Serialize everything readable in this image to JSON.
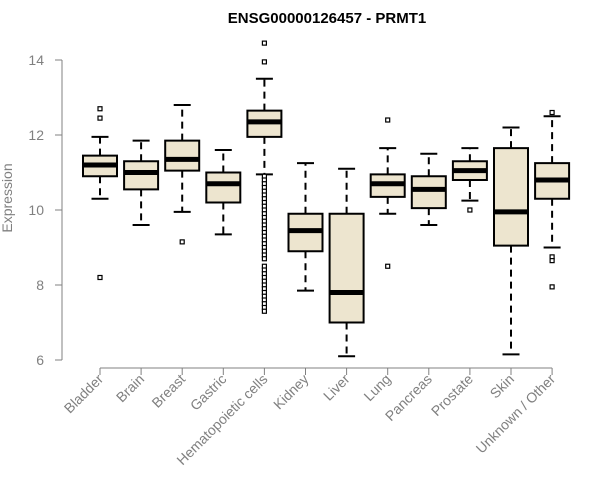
{
  "chart_data": {
    "type": "boxplot",
    "title": "ENSG00000126457 - PRMT1",
    "xlabel": "",
    "ylabel": "Expression",
    "ylim": [
      6,
      14.5
    ],
    "yticks": [
      6,
      8,
      10,
      12,
      14
    ],
    "colors": {
      "box_fill": "#ede5cf",
      "axis": "#808080",
      "median": "#000000"
    },
    "categories": [
      "Bladder",
      "Brain",
      "Breast",
      "Gastric",
      "Hematopoietic cells",
      "Kidney",
      "Liver",
      "Lung",
      "Pancreas",
      "Prostate",
      "Skin",
      "Unknown / Other"
    ],
    "boxes": [
      {
        "name": "Bladder",
        "min": 10.3,
        "q1": 10.9,
        "median": 11.2,
        "q3": 11.45,
        "max": 11.95,
        "outliers": [
          12.7,
          12.45,
          8.2
        ]
      },
      {
        "name": "Brain",
        "min": 9.6,
        "q1": 10.55,
        "median": 11.0,
        "q3": 11.3,
        "max": 11.85,
        "outliers": []
      },
      {
        "name": "Breast",
        "min": 9.95,
        "q1": 11.05,
        "median": 11.35,
        "q3": 11.85,
        "max": 12.8,
        "outliers": [
          9.15
        ]
      },
      {
        "name": "Gastric",
        "min": 9.35,
        "q1": 10.2,
        "median": 10.7,
        "q3": 11.0,
        "max": 11.6,
        "outliers": []
      },
      {
        "name": "Hematopoietic cells",
        "min": 10.95,
        "q1": 11.95,
        "median": 12.35,
        "q3": 12.65,
        "max": 13.5,
        "outliers": [
          14.45,
          13.95,
          10.9,
          10.8,
          10.7,
          10.6,
          10.5,
          10.4,
          10.3,
          10.2,
          10.1,
          10.0,
          9.9,
          9.8,
          9.7,
          9.6,
          9.5,
          9.4,
          9.3,
          9.2,
          9.1,
          9.0,
          8.9,
          8.8,
          8.7,
          8.5,
          8.4,
          8.3,
          8.2,
          8.1,
          8.0,
          7.9,
          7.8,
          7.7,
          7.6,
          7.5,
          7.4,
          7.3
        ]
      },
      {
        "name": "Kidney",
        "min": 7.85,
        "q1": 8.9,
        "median": 9.45,
        "q3": 9.9,
        "max": 11.25,
        "outliers": []
      },
      {
        "name": "Liver",
        "min": 6.1,
        "q1": 7.0,
        "median": 7.8,
        "q3": 9.9,
        "max": 11.1,
        "outliers": []
      },
      {
        "name": "Lung",
        "min": 9.9,
        "q1": 10.35,
        "median": 10.7,
        "q3": 10.95,
        "max": 11.65,
        "outliers": [
          12.4,
          8.5
        ]
      },
      {
        "name": "Pancreas",
        "min": 9.6,
        "q1": 10.05,
        "median": 10.55,
        "q3": 10.9,
        "max": 11.5,
        "outliers": []
      },
      {
        "name": "Prostate",
        "min": 10.25,
        "q1": 10.8,
        "median": 11.05,
        "q3": 11.3,
        "max": 11.65,
        "outliers": [
          10.0
        ]
      },
      {
        "name": "Skin",
        "min": 6.15,
        "q1": 9.05,
        "median": 9.95,
        "q3": 11.65,
        "max": 12.2,
        "outliers": []
      },
      {
        "name": "Unknown / Other",
        "min": 9.0,
        "q1": 10.3,
        "median": 10.8,
        "q3": 11.25,
        "max": 12.5,
        "outliers": [
          12.6,
          8.75,
          8.65,
          7.95
        ]
      }
    ]
  }
}
